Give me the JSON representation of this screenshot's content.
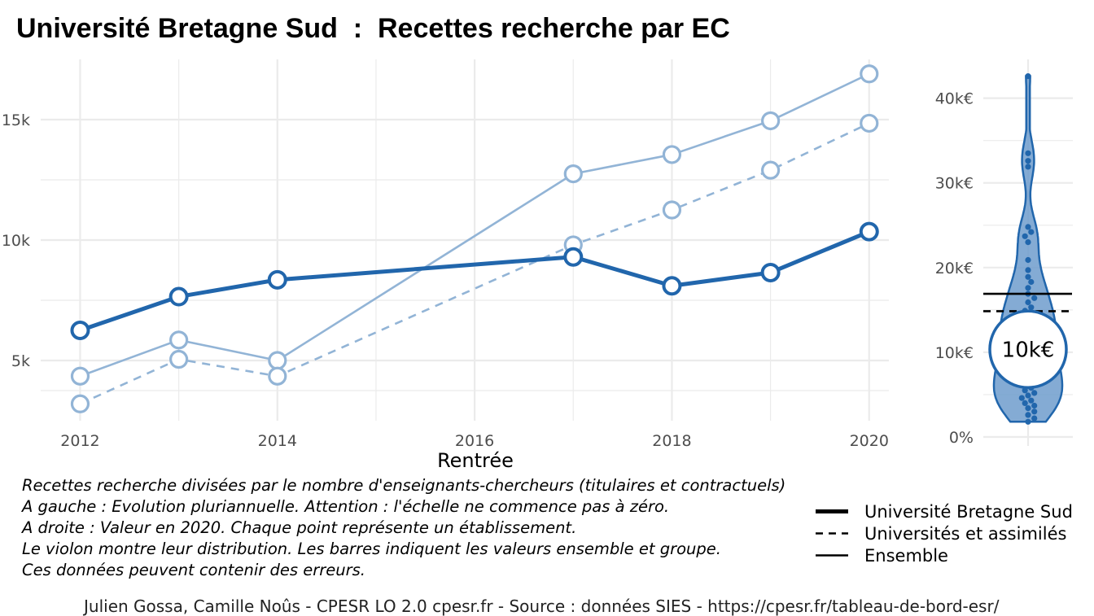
{
  "title": "Université Bretagne Sud  :  Recettes recherche par EC",
  "chart_data": [
    {
      "type": "line",
      "title": "Université Bretagne Sud  :  Recettes recherche par EC",
      "xlabel": "Rentrée",
      "ylabel": "",
      "xlim": [
        2011.6,
        2020.2
      ],
      "ylim": [
        2500,
        17500
      ],
      "x_ticks": [
        2012,
        2014,
        2016,
        2018,
        2020
      ],
      "x_tick_labels": [
        "2012",
        "2014",
        "2016",
        "2018",
        "2020"
      ],
      "y_ticks": [
        5000,
        10000,
        15000
      ],
      "y_tick_labels": [
        "5k",
        "10k",
        "15k"
      ],
      "grid": true,
      "series": [
        {
          "name": "Université Bretagne Sud",
          "style": "solid-thick",
          "color": "#2166ac",
          "x": [
            2012,
            2013,
            2014,
            2017,
            2018,
            2019,
            2020
          ],
          "y": [
            6250,
            7650,
            8350,
            9300,
            8100,
            8650,
            10350
          ]
        },
        {
          "name": "Universités et assimilés",
          "style": "dashed",
          "color": "#92b4d6",
          "x": [
            2012,
            2013,
            2014,
            2017,
            2018,
            2019,
            2020
          ],
          "y": [
            3200,
            5050,
            4350,
            9800,
            11250,
            12900,
            14850
          ]
        },
        {
          "name": "Ensemble",
          "style": "solid-thin",
          "color": "#92b4d6",
          "x": [
            2012,
            2013,
            2014,
            2017,
            2018,
            2019,
            2020
          ],
          "y": [
            4350,
            5850,
            5000,
            12750,
            13550,
            14950,
            16900
          ]
        }
      ]
    },
    {
      "type": "violin",
      "ylim": [
        0,
        44000
      ],
      "y_ticks": [
        0,
        10000,
        20000,
        30000,
        40000
      ],
      "y_tick_labels": [
        "0%",
        "10k€",
        "20k€",
        "30k€",
        "40k€"
      ],
      "grid": true,
      "color": "#2166ac",
      "points": [
        42600,
        33500,
        32600,
        31900,
        24800,
        24200,
        23700,
        23000,
        20900,
        19700,
        18900,
        18300,
        17600,
        16900,
        16400,
        15900,
        15300,
        14900,
        14500,
        14100,
        13700,
        13300,
        12900,
        12500,
        12100,
        11700,
        11300,
        10900,
        10500,
        10100,
        9700,
        9300,
        8900,
        8500,
        8100,
        7700,
        7300,
        7000,
        6700,
        6400,
        6100,
        5800,
        5500,
        5200,
        4900,
        4600,
        4300,
        4000,
        3700,
        3400,
        3000,
        2600,
        2200,
        1800
      ],
      "ensemble_value": 16900,
      "group_value": 14850,
      "highlight_value": 10350,
      "highlight_label": "10k€"
    }
  ],
  "notes": [
    "Recettes recherche divisées par le nombre d'enseignants-chercheurs (titulaires et contractuels)",
    "A gauche : Evolution pluriannuelle. Attention : l'échelle ne commence pas à zéro.",
    "A droite : Valeur en 2020. Chaque point représente un établissement.",
    "Le violon montre leur distribution. Les barres indiquent les valeurs ensemble et groupe.",
    "Ces données peuvent contenir des erreurs."
  ],
  "legend": [
    {
      "label": "Université Bretagne Sud",
      "style": "thick"
    },
    {
      "label": "Universités et assimilés",
      "style": "dashed"
    },
    {
      "label": "Ensemble",
      "style": "thin"
    }
  ],
  "caption": "Julien Gossa, Camille Noûs - CPESR LO 2.0 cpesr.fr - Source : données SIES - https://cpesr.fr/tableau-de-bord-esr/"
}
